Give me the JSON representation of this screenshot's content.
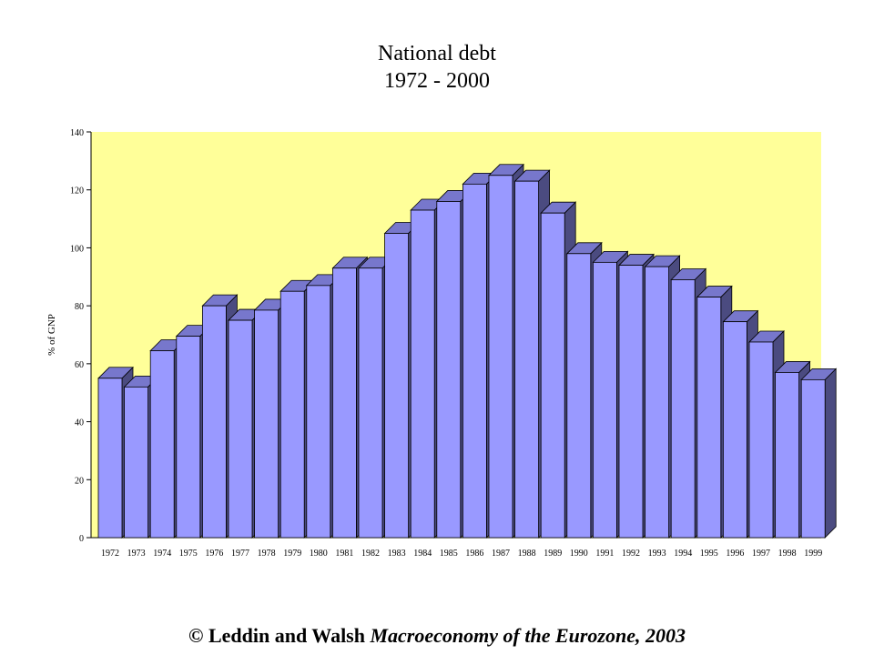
{
  "chart_data": {
    "type": "bar",
    "title": "National debt",
    "subtitle": "1972 - 2000",
    "ylabel": "% of GNP",
    "xlabel": "",
    "ylim": [
      0,
      140
    ],
    "yticks": [
      0,
      20,
      40,
      60,
      80,
      100,
      120,
      140
    ],
    "grid": false,
    "style": "3d",
    "categories": [
      "1972",
      "1973",
      "1974",
      "1975",
      "1976",
      "1977",
      "1978",
      "1979",
      "1980",
      "1981",
      "1982",
      "1983",
      "1984",
      "1985",
      "1986",
      "1987",
      "1988",
      "1989",
      "1990",
      "1991",
      "1992",
      "1993",
      "1994",
      "1995",
      "1996",
      "1997",
      "1998",
      "1999"
    ],
    "values": [
      55,
      52,
      64.5,
      69.5,
      80,
      75,
      78.5,
      85,
      87,
      93,
      93,
      105,
      113,
      116,
      122,
      125,
      123,
      112,
      98,
      95,
      94,
      93.5,
      89,
      83,
      74.5,
      67.5,
      57,
      54.5
    ],
    "colors": {
      "plot_background": "#FFFF99",
      "bar_front": "#9999FF",
      "bar_top": "#7777CC",
      "bar_side": "#4B4B80"
    }
  },
  "footer": {
    "copyright_symbol": "©",
    "authors": "Leddin and Walsh",
    "book_title": "Macroeconomy of the Eurozone, 2003"
  }
}
